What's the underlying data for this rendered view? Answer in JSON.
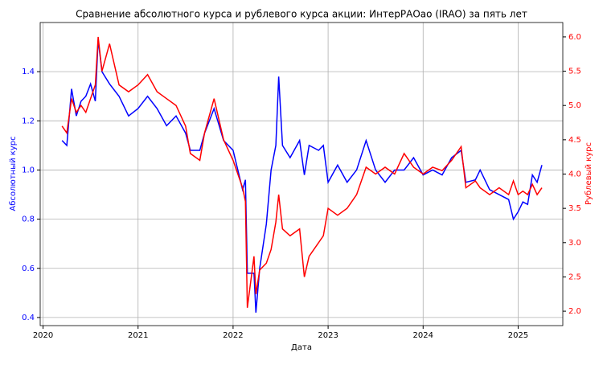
{
  "chart_data": {
    "type": "line",
    "title": "Сравнение абсолютного курса и рублевого курса акции: ИнтерРАОао (IRAO) за пять лет",
    "xlabel": "Дата",
    "ylabel": "Абсолютный курс",
    "y2label": "Рублевый курс",
    "x": [
      2020.2,
      2020.25,
      2020.3,
      2020.35,
      2020.4,
      2020.45,
      2020.5,
      2020.55,
      2020.58,
      2020.62,
      2020.7,
      2020.8,
      2020.9,
      2021.0,
      2021.1,
      2021.2,
      2021.3,
      2021.4,
      2021.5,
      2021.55,
      2021.65,
      2021.7,
      2021.8,
      2021.9,
      2022.0,
      2022.1,
      2022.13,
      2022.15,
      2022.22,
      2022.24,
      2022.28,
      2022.35,
      2022.4,
      2022.45,
      2022.48,
      2022.52,
      2022.6,
      2022.7,
      2022.75,
      2022.8,
      2022.9,
      2022.95,
      2023.0,
      2023.1,
      2023.2,
      2023.3,
      2023.4,
      2023.5,
      2023.6,
      2023.7,
      2023.8,
      2023.9,
      2024.0,
      2024.1,
      2024.2,
      2024.3,
      2024.4,
      2024.45,
      2024.55,
      2024.6,
      2024.7,
      2024.8,
      2024.9,
      2024.95,
      2025.0,
      2025.05,
      2025.1,
      2025.15,
      2025.2,
      2025.25
    ],
    "series": [
      {
        "name": "Абсолютный курс",
        "color": "#0000ff",
        "axis": "y",
        "values": [
          1.12,
          1.1,
          1.33,
          1.22,
          1.28,
          1.3,
          1.35,
          1.28,
          1.53,
          1.4,
          1.35,
          1.3,
          1.22,
          1.25,
          1.3,
          1.25,
          1.18,
          1.22,
          1.15,
          1.08,
          1.08,
          1.15,
          1.25,
          1.12,
          1.08,
          0.92,
          0.96,
          0.58,
          0.58,
          0.42,
          0.6,
          0.78,
          1.0,
          1.1,
          1.38,
          1.1,
          1.05,
          1.12,
          0.98,
          1.1,
          1.08,
          1.1,
          0.95,
          1.02,
          0.95,
          1.0,
          1.12,
          1.0,
          0.95,
          1.0,
          1.0,
          1.05,
          0.98,
          1.0,
          0.98,
          1.05,
          1.08,
          0.95,
          0.96,
          1.0,
          0.92,
          0.9,
          0.88,
          0.8,
          0.83,
          0.87,
          0.86,
          0.98,
          0.95,
          1.02
        ]
      },
      {
        "name": "Рублевый курс",
        "color": "#ff0000",
        "axis": "y2",
        "values": [
          4.7,
          4.6,
          5.1,
          4.9,
          5.0,
          4.9,
          5.1,
          5.3,
          6.0,
          5.5,
          5.9,
          5.3,
          5.2,
          5.3,
          5.45,
          5.2,
          5.1,
          5.0,
          4.7,
          4.3,
          4.2,
          4.6,
          5.1,
          4.5,
          4.2,
          3.8,
          3.6,
          2.05,
          2.8,
          2.25,
          2.6,
          2.7,
          2.9,
          3.3,
          3.7,
          3.2,
          3.1,
          3.2,
          2.5,
          2.8,
          3.0,
          3.1,
          3.5,
          3.4,
          3.5,
          3.7,
          4.1,
          4.0,
          4.1,
          4.0,
          4.3,
          4.1,
          4.0,
          4.1,
          4.05,
          4.2,
          4.4,
          3.8,
          3.9,
          3.8,
          3.7,
          3.8,
          3.7,
          3.9,
          3.7,
          3.75,
          3.7,
          3.85,
          3.7,
          3.8
        ]
      }
    ],
    "xlim": [
      2019.97,
      2025.47
    ],
    "xticks": [
      2020,
      2021,
      2022,
      2023,
      2024,
      2025
    ],
    "ylim": [
      0.367,
      1.6
    ],
    "yticks": [
      0.4,
      0.6,
      0.8,
      {
        "value": 1,
        "label": "1.0"
      },
      1.2,
      1.4
    ],
    "y2lim": [
      1.79,
      6.21
    ],
    "y2ticks": [
      {
        "value": 2,
        "label": "2.0"
      },
      2.5,
      {
        "value": 3,
        "label": "3.0"
      },
      3.5,
      {
        "value": 4,
        "label": "4.0"
      },
      4.5,
      {
        "value": 5,
        "label": "5.0"
      },
      5.5,
      {
        "value": 6,
        "label": "6.0"
      }
    ],
    "grid": true
  }
}
